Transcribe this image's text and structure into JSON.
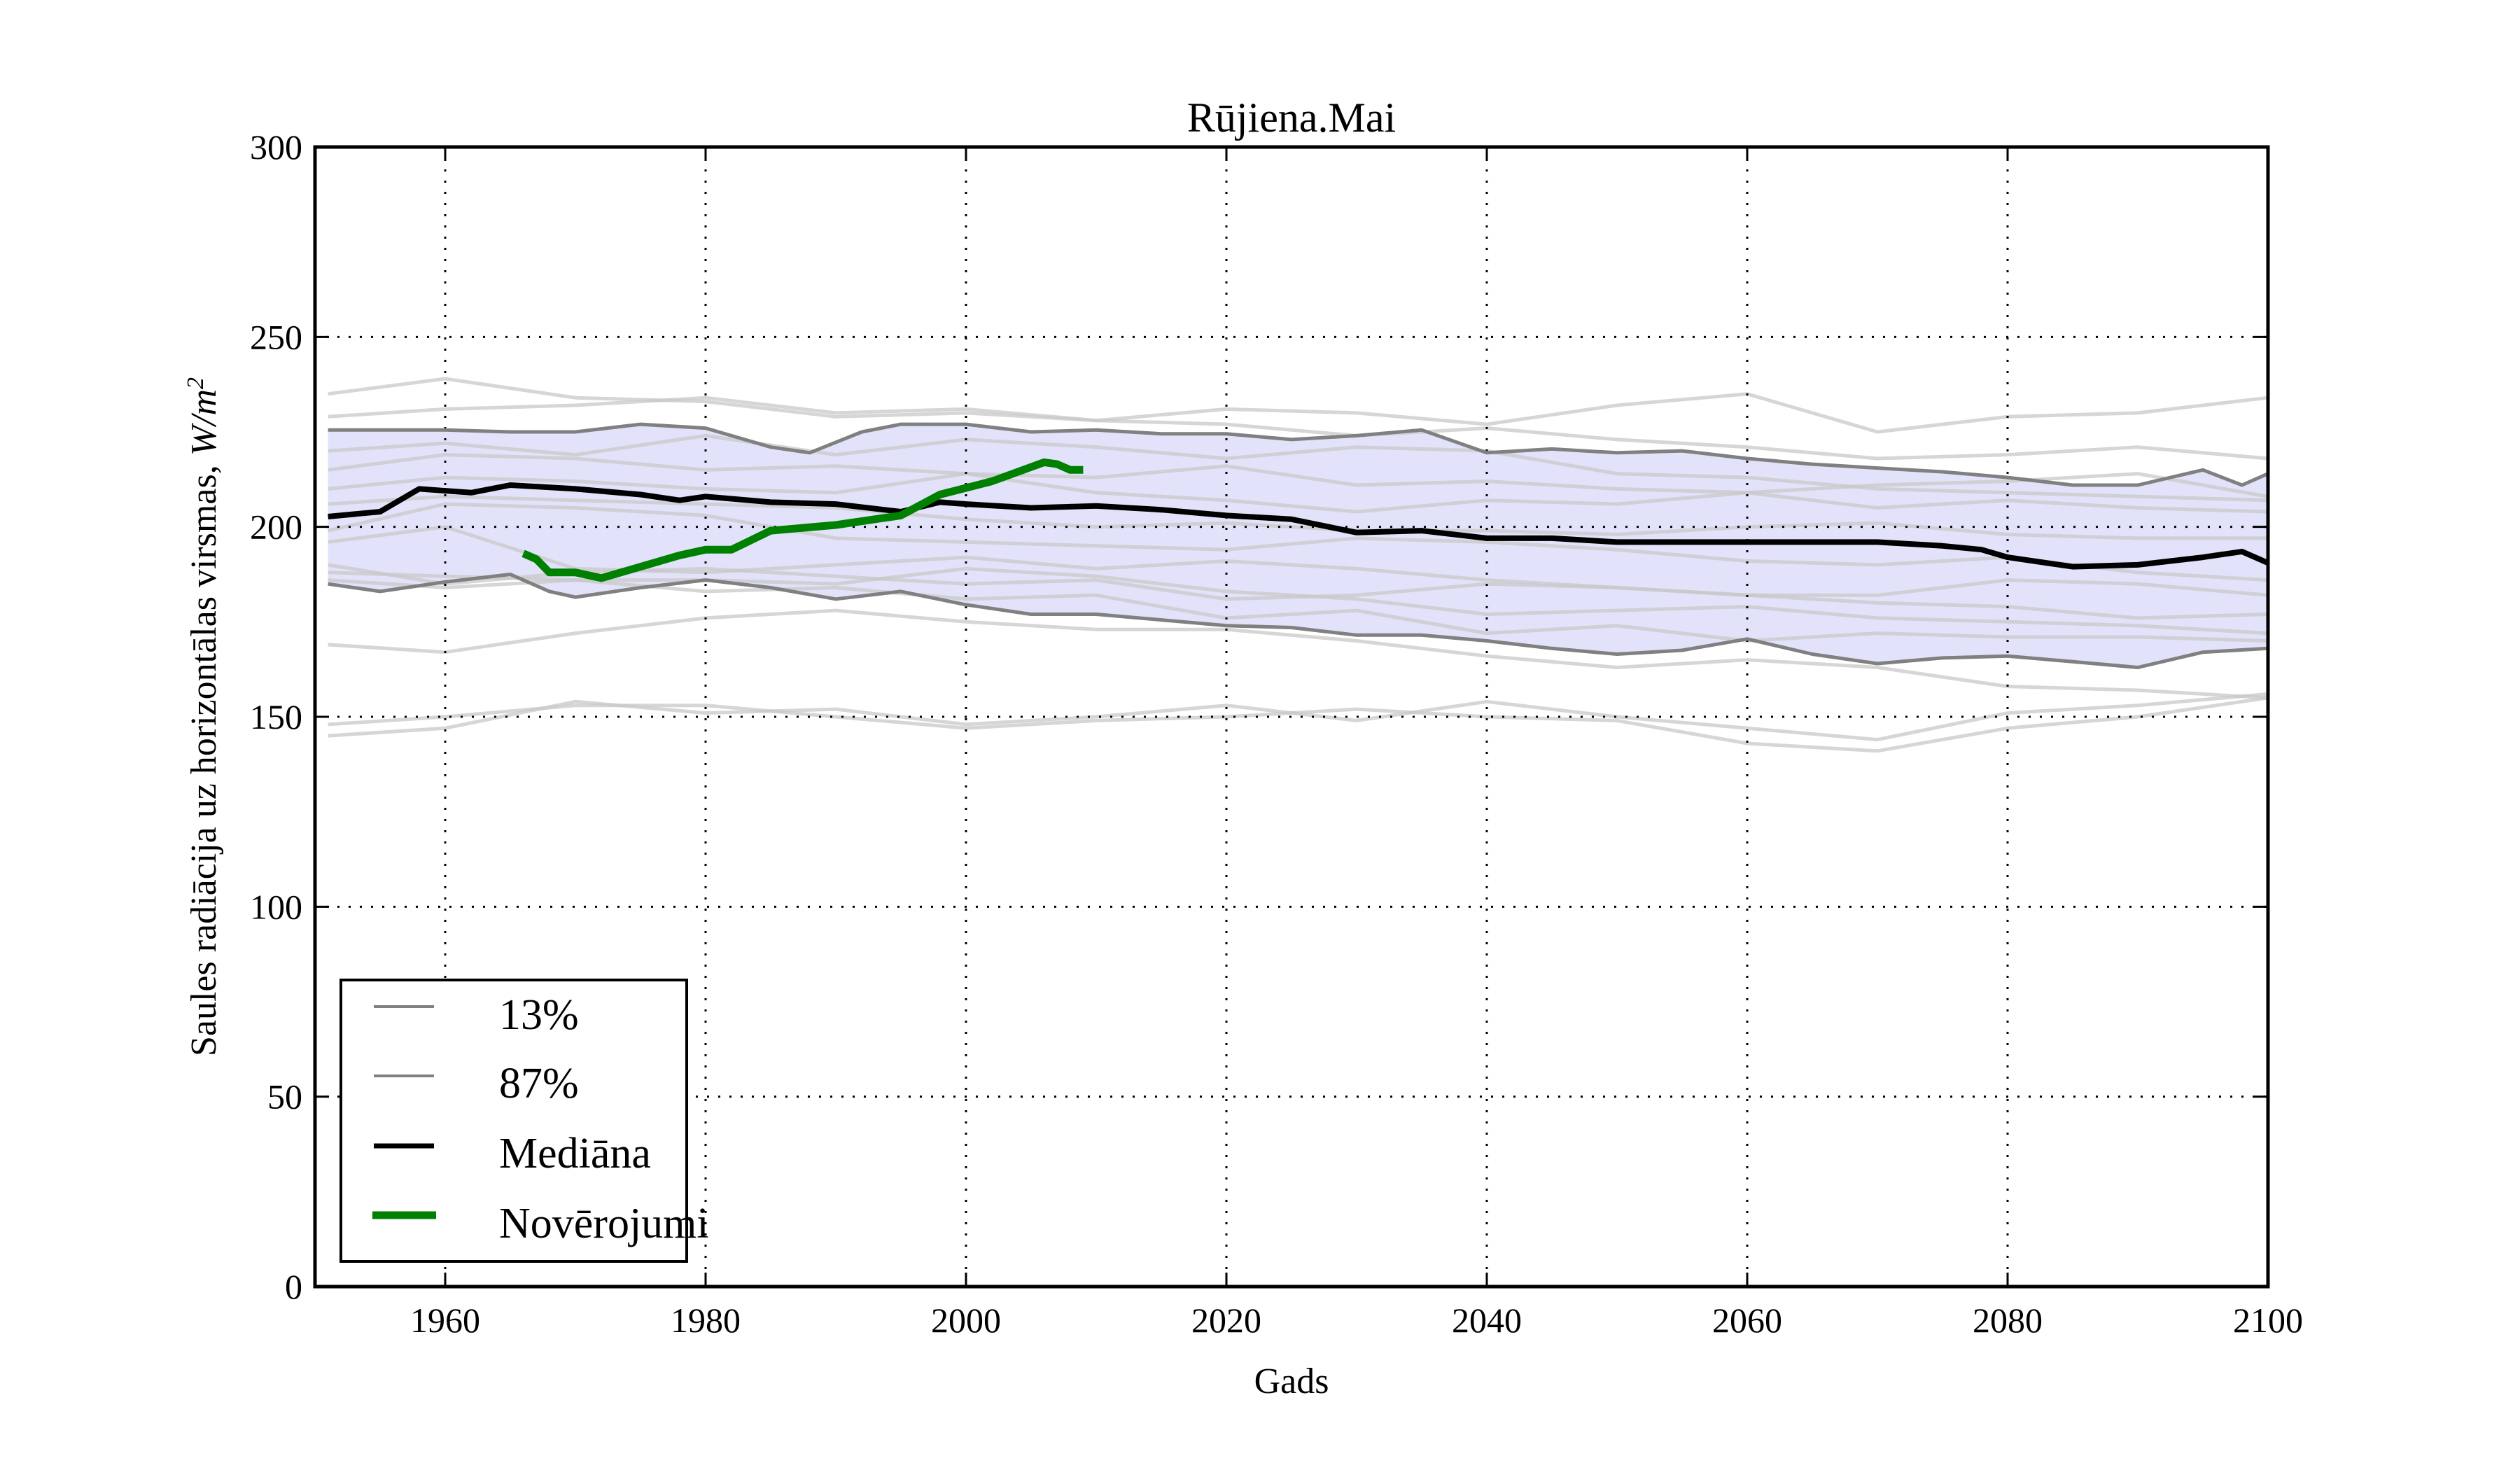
{
  "chart_data": {
    "type": "line",
    "title": "Rūjiena.Mai",
    "xlabel": "Gads",
    "ylabel": "Saules radiācija uz horizontālas virsmas, ",
    "ylabel_unit": "W/m",
    "ylabel_unit_sup": "2",
    "xlim": [
      1950,
      2100
    ],
    "ylim": [
      0,
      300
    ],
    "xticks": [
      1960,
      1980,
      2000,
      2020,
      2040,
      2060,
      2080,
      2100
    ],
    "xtick_labels": [
      "1960",
      "1980",
      "2000",
      "2020",
      "2040",
      "2060",
      "2080",
      "2100"
    ],
    "yticks": [
      0,
      50,
      100,
      150,
      200,
      250,
      300
    ],
    "ytick_labels": [
      "0",
      "50",
      "100",
      "150",
      "200",
      "250",
      "300"
    ],
    "grid": true,
    "legend_position": "lower-left",
    "band_color": "#e2e2fa",
    "series": [
      {
        "name": "13%",
        "color": "#808080",
        "role": "lower-band",
        "x": [
          1951,
          1955,
          1960,
          1965,
          1968,
          1970,
          1975,
          1980,
          1985,
          1990,
          1995,
          2000,
          2005,
          2010,
          2015,
          2020,
          2025,
          2030,
          2035,
          2040,
          2045,
          2050,
          2055,
          2060,
          2065,
          2070,
          2075,
          2080,
          2085,
          2090,
          2095,
          2100
        ],
        "y": [
          185,
          183,
          185.5,
          187.5,
          183,
          181.5,
          184,
          186,
          184,
          181,
          183,
          179.5,
          177,
          177,
          175.5,
          174,
          173.5,
          171.5,
          171.5,
          170,
          168,
          166.5,
          167.5,
          170.5,
          166.5,
          164,
          165.5,
          166,
          164.5,
          163,
          167,
          168
        ]
      },
      {
        "name": "87%",
        "color": "#808080",
        "role": "upper-band",
        "x": [
          1951,
          1960,
          1965,
          1970,
          1975,
          1980,
          1985,
          1988,
          1992,
          1995,
          2000,
          2005,
          2010,
          2015,
          2020,
          2025,
          2030,
          2035,
          2040,
          2045,
          2050,
          2055,
          2060,
          2065,
          2070,
          2075,
          2080,
          2085,
          2090,
          2095,
          2098,
          2100
        ],
        "y": [
          225.5,
          225.5,
          225,
          225,
          227,
          226,
          221,
          219.5,
          225,
          227,
          227,
          225,
          225.5,
          224.5,
          224.5,
          223,
          224,
          225.5,
          219.5,
          220.5,
          219.5,
          220,
          218,
          216.5,
          215.5,
          214.5,
          213,
          211,
          211,
          215,
          211,
          214
        ]
      },
      {
        "name": "Mediāna",
        "color": "#000000",
        "role": "median",
        "x": [
          1951,
          1955,
          1958,
          1962,
          1965,
          1970,
          1975,
          1978,
          1980,
          1985,
          1990,
          1995,
          1998,
          2000,
          2005,
          2010,
          2015,
          2020,
          2025,
          2030,
          2035,
          2040,
          2045,
          2050,
          2055,
          2060,
          2065,
          2070,
          2075,
          2078,
          2080,
          2085,
          2090,
          2095,
          2098,
          2100
        ],
        "y": [
          202.7,
          204,
          210,
          209,
          211,
          210,
          208.5,
          207,
          208,
          206.5,
          206,
          204,
          206.5,
          206,
          205,
          205.5,
          204.5,
          203,
          202,
          198.5,
          199,
          197,
          197,
          196,
          196,
          196,
          196,
          196,
          195,
          194,
          192,
          189.5,
          190,
          192,
          193.5,
          190.5
        ]
      },
      {
        "name": "Novērojumi",
        "color": "#008000",
        "role": "observations",
        "x": [
          1966,
          1967,
          1968,
          1970,
          1972,
          1975,
          1978,
          1980,
          1982,
          1985,
          1990,
          1995,
          1998,
          2002,
          2006,
          2007,
          2008,
          2009
        ],
        "y": [
          193,
          191.5,
          188,
          188,
          186.5,
          189.5,
          192.5,
          194,
          194,
          199,
          200.5,
          203,
          208.5,
          212,
          217,
          216.5,
          215,
          215
        ]
      }
    ],
    "model_runs": {
      "color": "#c8c8c8",
      "x": [
        1951,
        1960,
        1970,
        1980,
        1990,
        2000,
        2010,
        2020,
        2030,
        2040,
        2050,
        2060,
        2070,
        2080,
        2090,
        2100
      ],
      "runs": [
        [
          235,
          239,
          234,
          233,
          229,
          230,
          228,
          231,
          230,
          227,
          232,
          235,
          225,
          229,
          230,
          234
        ],
        [
          229,
          231,
          232,
          234,
          230,
          231,
          228,
          227,
          224,
          226,
          223,
          221,
          218,
          219,
          221,
          218
        ],
        [
          220,
          222,
          219,
          224,
          219,
          223,
          221,
          218,
          221,
          220,
          214,
          213,
          210,
          209,
          208,
          207
        ],
        [
          215,
          219,
          218,
          215,
          216,
          214,
          213,
          216,
          211,
          212,
          210,
          209,
          211,
          212,
          214,
          208
        ],
        [
          210,
          213,
          212,
          210,
          209,
          214,
          209,
          207,
          204,
          207,
          206,
          209,
          205,
          207,
          205,
          204
        ],
        [
          206,
          208,
          207,
          206,
          205,
          202,
          200,
          201,
          199,
          199,
          198,
          200,
          201,
          198,
          197,
          197
        ],
        [
          199,
          206,
          205,
          203,
          197,
          196,
          195,
          194,
          197,
          196,
          194,
          191,
          190,
          192,
          188,
          186
        ],
        [
          196,
          200,
          189,
          188,
          190,
          192,
          189,
          191,
          189,
          186,
          184,
          182,
          182,
          186,
          185,
          182
        ],
        [
          190,
          185,
          188,
          189,
          187,
          185,
          186,
          181,
          182,
          185,
          184,
          182,
          180,
          179,
          176,
          177
        ],
        [
          188,
          187,
          186,
          186,
          185,
          189,
          187,
          183,
          181,
          177,
          178,
          179,
          176,
          175,
          174,
          172
        ],
        [
          186,
          184,
          186,
          183,
          184,
          181,
          182,
          176,
          178,
          172,
          174,
          170,
          172,
          171,
          171,
          170
        ],
        [
          169,
          167,
          172,
          176,
          178,
          175,
          173,
          173,
          170,
          166,
          163,
          165,
          163,
          158,
          157,
          155
        ],
        [
          148,
          150,
          153,
          153,
          150,
          147,
          149,
          150,
          152,
          150,
          149,
          143,
          141,
          147,
          150,
          155
        ],
        [
          145,
          147,
          154,
          151,
          152,
          148,
          150,
          153,
          149,
          154,
          150,
          147,
          144,
          151,
          153,
          156
        ]
      ]
    }
  }
}
